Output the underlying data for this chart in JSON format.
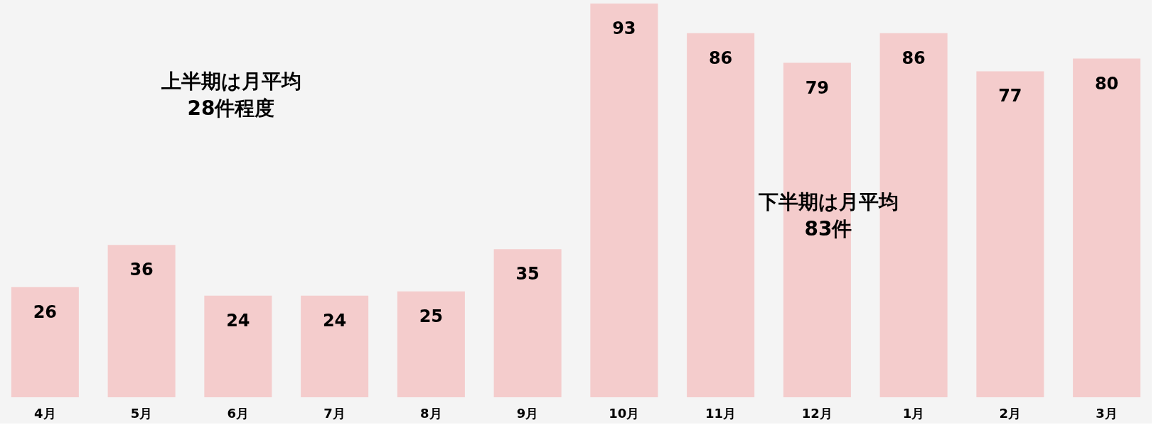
{
  "chart_data": {
    "type": "bar",
    "categories": [
      "4月",
      "5月",
      "6月",
      "7月",
      "8月",
      "9月",
      "10月",
      "11月",
      "12月",
      "1月",
      "2月",
      "3月"
    ],
    "values": [
      26,
      36,
      24,
      24,
      25,
      35,
      93,
      86,
      79,
      86,
      77,
      80
    ],
    "color": "#f4cccc",
    "data_labels": true,
    "tick_labels": "x",
    "grid": false,
    "annotations": [
      "上半期は月平均\n28件程度",
      "下半期は月平均\n83件"
    ]
  }
}
